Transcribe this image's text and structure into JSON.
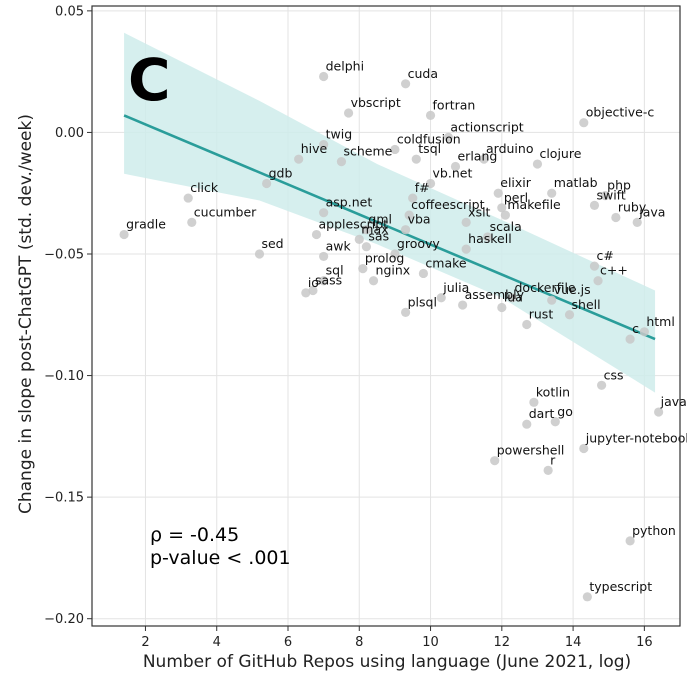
{
  "chart_data": {
    "type": "scatter",
    "panel_label": "C",
    "xlabel": "Number of GitHub Repos using language (June 2021, log)",
    "ylabel": "Change in slope post-ChatGPT (std. dev./week)",
    "xlim": [
      0.5,
      17.0
    ],
    "ylim": [
      -0.203,
      0.052
    ],
    "xticks": [
      2,
      4,
      6,
      8,
      10,
      12,
      14,
      16
    ],
    "yticks": [
      0.05,
      0.0,
      -0.05,
      -0.1,
      -0.15,
      -0.2
    ],
    "ytick_labels": [
      "0.05",
      "0.00",
      "−0.05",
      "−0.10",
      "−0.15",
      "−0.20"
    ],
    "grid": true,
    "point_color": "#c8c8c8",
    "fit_color": "#2a9d9a",
    "band_color": "#cfeceb",
    "stats": {
      "rho": "ρ = -0.45",
      "pvalue": "p-value < .001"
    },
    "fit_line": {
      "x": [
        1.4,
        16.3
      ],
      "y": [
        0.007,
        -0.085
      ]
    },
    "confidence_band": {
      "x": [
        1.4,
        5.2,
        8.5,
        12.0,
        16.3
      ],
      "upper": [
        0.041,
        0.013,
        -0.013,
        -0.036,
        -0.065
      ],
      "lower": [
        -0.017,
        -0.028,
        -0.046,
        -0.068,
        -0.107
      ]
    },
    "points": [
      {
        "label": "delphi",
        "x": 7.0,
        "y": 0.023
      },
      {
        "label": "cuda",
        "x": 9.3,
        "y": 0.02
      },
      {
        "label": "vbscript",
        "x": 7.7,
        "y": 0.008
      },
      {
        "label": "fortran",
        "x": 10.0,
        "y": 0.007
      },
      {
        "label": "twig",
        "x": 7.0,
        "y": -0.005
      },
      {
        "label": "coldfusion",
        "x": 9.0,
        "y": -0.007
      },
      {
        "label": "actionscript",
        "x": 10.5,
        "y": -0.002
      },
      {
        "label": "objective-c",
        "x": 14.3,
        "y": 0.004
      },
      {
        "label": "clojure",
        "x": 13.0,
        "y": -0.013
      },
      {
        "label": "hive",
        "x": 6.3,
        "y": -0.011
      },
      {
        "label": "scheme",
        "x": 7.5,
        "y": -0.012
      },
      {
        "label": "tsql",
        "x": 9.6,
        "y": -0.011
      },
      {
        "label": "arduino",
        "x": 11.5,
        "y": -0.011
      },
      {
        "label": "erlang",
        "x": 10.7,
        "y": -0.014
      },
      {
        "label": "gdb",
        "x": 5.4,
        "y": -0.021
      },
      {
        "label": "vb.net",
        "x": 10.0,
        "y": -0.021
      },
      {
        "label": "matlab",
        "x": 13.4,
        "y": -0.025
      },
      {
        "label": "php",
        "x": 14.9,
        "y": -0.026
      },
      {
        "label": "click",
        "x": 3.2,
        "y": -0.027
      },
      {
        "label": "f#",
        "x": 9.5,
        "y": -0.027
      },
      {
        "label": "elixir",
        "x": 11.9,
        "y": -0.025
      },
      {
        "label": "swift",
        "x": 14.6,
        "y": -0.03
      },
      {
        "label": "perl",
        "x": 12.0,
        "y": -0.031
      },
      {
        "label": "asp.net",
        "x": 7.0,
        "y": -0.033
      },
      {
        "label": "coffeescript",
        "x": 9.4,
        "y": -0.034
      },
      {
        "label": "ruby",
        "x": 15.2,
        "y": -0.035
      },
      {
        "label": "cucumber",
        "x": 3.3,
        "y": -0.037
      },
      {
        "label": "xslt",
        "x": 11.0,
        "y": -0.037
      },
      {
        "label": "makefile",
        "x": 12.1,
        "y": -0.034
      },
      {
        "label": "qml",
        "x": 8.2,
        "y": -0.04
      },
      {
        "label": "gradle",
        "x": 1.4,
        "y": -0.042
      },
      {
        "label": "java",
        "x": 15.8,
        "y": -0.037
      },
      {
        "label": "scala",
        "x": 11.6,
        "y": -0.043
      },
      {
        "label": "applescript",
        "x": 6.8,
        "y": -0.042
      },
      {
        "label": "max",
        "x": 8.0,
        "y": -0.044
      },
      {
        "label": "vba",
        "x": 9.3,
        "y": -0.04
      },
      {
        "label": "sas",
        "x": 8.2,
        "y": -0.047
      },
      {
        "label": "haskell",
        "x": 11.0,
        "y": -0.048
      },
      {
        "label": "awk",
        "x": 7.0,
        "y": -0.051
      },
      {
        "label": "groovy",
        "x": 9.0,
        "y": -0.05
      },
      {
        "label": "sed",
        "x": 5.2,
        "y": -0.05
      },
      {
        "label": "c#",
        "x": 14.6,
        "y": -0.055
      },
      {
        "label": "prolog",
        "x": 8.1,
        "y": -0.056
      },
      {
        "label": "cmake",
        "x": 9.8,
        "y": -0.058
      },
      {
        "label": "sql",
        "x": 7.0,
        "y": -0.061
      },
      {
        "label": "nginx",
        "x": 8.4,
        "y": -0.061
      },
      {
        "label": "c++",
        "x": 14.7,
        "y": -0.061
      },
      {
        "label": "sass",
        "x": 6.7,
        "y": -0.065
      },
      {
        "label": "dockerfile",
        "x": 12.3,
        "y": -0.068
      },
      {
        "label": "julia",
        "x": 10.3,
        "y": -0.068
      },
      {
        "label": "vue.js",
        "x": 13.4,
        "y": -0.069
      },
      {
        "label": "io",
        "x": 6.5,
        "y": -0.066
      },
      {
        "label": "plsql",
        "x": 9.3,
        "y": -0.074
      },
      {
        "label": "lua",
        "x": 12.0,
        "y": -0.072
      },
      {
        "label": "shell",
        "x": 13.9,
        "y": -0.075
      },
      {
        "label": "assembly",
        "x": 10.9,
        "y": -0.071
      },
      {
        "label": "rust",
        "x": 12.7,
        "y": -0.079
      },
      {
        "label": "html",
        "x": 16.0,
        "y": -0.082
      },
      {
        "label": "c",
        "x": 15.6,
        "y": -0.085
      },
      {
        "label": "css",
        "x": 14.8,
        "y": -0.104
      },
      {
        "label": "kotlin",
        "x": 12.9,
        "y": -0.111
      },
      {
        "label": "javascript",
        "x": 16.4,
        "y": -0.115
      },
      {
        "label": "go",
        "x": 13.5,
        "y": -0.119
      },
      {
        "label": "dart",
        "x": 12.7,
        "y": -0.12
      },
      {
        "label": "jupyter-notebook",
        "x": 14.3,
        "y": -0.13
      },
      {
        "label": "powershell",
        "x": 11.8,
        "y": -0.135
      },
      {
        "label": "r",
        "x": 13.3,
        "y": -0.139
      },
      {
        "label": "python",
        "x": 15.6,
        "y": -0.168
      },
      {
        "label": "typescript",
        "x": 14.4,
        "y": -0.191
      }
    ]
  }
}
